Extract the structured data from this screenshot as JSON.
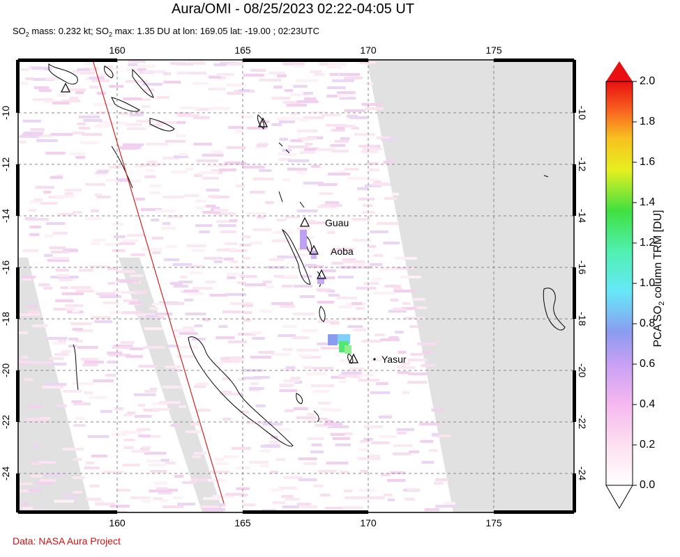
{
  "title": "Aura/OMI - 08/25/2023 02:22-04:05 UT",
  "subtitle": {
    "so2_1": "SO",
    "sub_1": "2",
    "mass": " mass: 0.232 kt; SO",
    "sub_2": "2",
    "rest": " max: 1.35 DU at lon: 169.05 lat: -19.00 ; 02:23UTC"
  },
  "credit": "Data: NASA Aura Project",
  "map": {
    "lon_ticks": [
      "160",
      "165",
      "170",
      "175"
    ],
    "lat_ticks": [
      "-10",
      "-12",
      "-14",
      "-16",
      "-18",
      "-20",
      "-22",
      "-24"
    ],
    "volcanoes": [
      {
        "name": "Guau"
      },
      {
        "name": "Aoba"
      },
      {
        "name": "Yasur"
      }
    ],
    "colors": {
      "no_data": "#e1e1e1",
      "frame": "#000000",
      "grid": "#888888",
      "orbit_line": "#d02020",
      "coast": "#000000"
    }
  },
  "colorbar": {
    "ticks": [
      "2.0",
      "1.8",
      "1.6",
      "1.4",
      "1.2",
      "1.0",
      "0.8",
      "0.6",
      "0.4",
      "0.2",
      "0.0"
    ],
    "label_pre": "PCA SO",
    "label_sub": "2",
    "label_post": " column TRM [DU]"
  }
}
